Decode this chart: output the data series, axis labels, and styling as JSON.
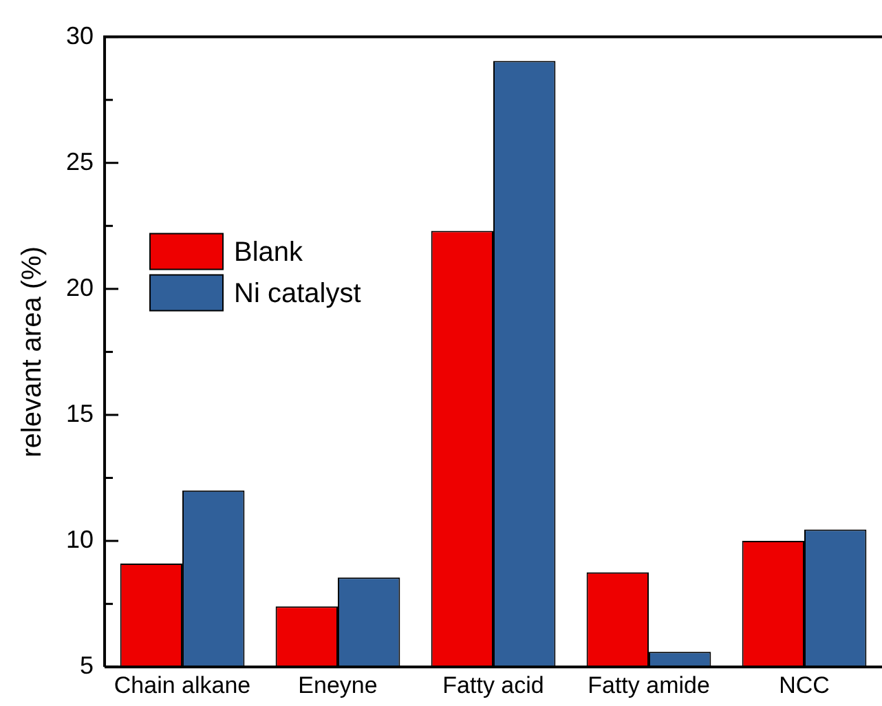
{
  "chart_data": {
    "type": "bar",
    "ylabel": "relevant area (%)",
    "categories": [
      "Chain alkane",
      "Eneyne",
      "Fatty acid",
      "Fatty amide",
      "NCC"
    ],
    "series": [
      {
        "name": "Blank",
        "color": "#ee0000",
        "values": [
          9.1,
          7.4,
          22.3,
          8.75,
          10.0
        ]
      },
      {
        "name": "Ni catalyst",
        "color": "#30609a",
        "values": [
          12.0,
          8.55,
          29.05,
          5.6,
          10.45
        ]
      }
    ],
    "ylim": [
      5,
      30
    ],
    "yticks": [
      5,
      {
        "value": 7.5,
        "label": null
      },
      10,
      {
        "value": 12.5,
        "label": null
      },
      15,
      {
        "value": 17.5,
        "label": null
      },
      20,
      {
        "value": 22.5,
        "label": null
      },
      25,
      {
        "value": 27.5,
        "label": null
      },
      30
    ],
    "grid": false,
    "legend": "top left"
  }
}
